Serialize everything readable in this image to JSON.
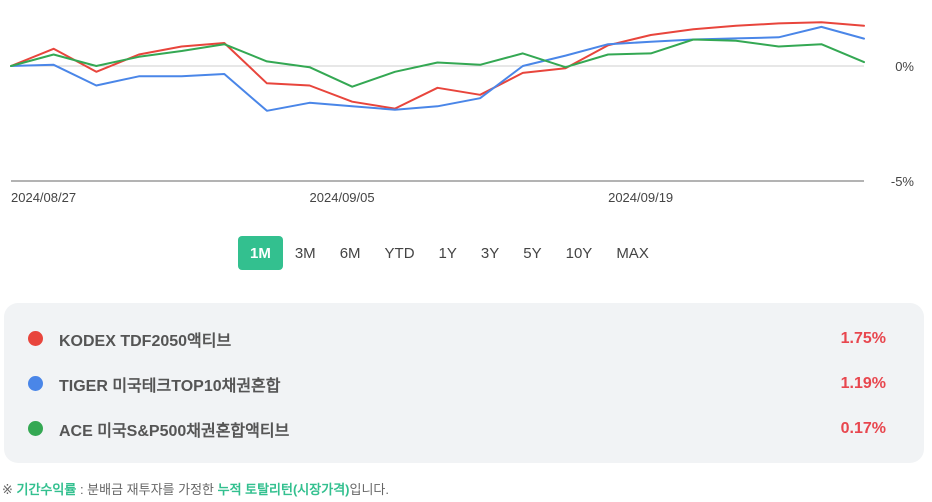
{
  "chart_data": {
    "type": "line",
    "x": [
      "2024/08/27",
      "2024/08/28",
      "2024/08/29",
      "2024/08/30",
      "2024/09/02",
      "2024/09/03",
      "2024/09/04",
      "2024/09/05",
      "2024/09/06",
      "2024/09/09",
      "2024/09/10",
      "2024/09/11",
      "2024/09/12",
      "2024/09/13",
      "2024/09/19",
      "2024/09/20",
      "2024/09/23",
      "2024/09/24",
      "2024/09/25",
      "2024/09/26",
      "2024/09/27"
    ],
    "xtick_labels": [
      "2024/08/27",
      "2024/09/05",
      "2024/09/19"
    ],
    "ytick_labels": [
      "0%",
      "-5%"
    ],
    "yticks": [
      0,
      -5
    ],
    "ylim": [
      -5,
      2
    ],
    "grid": true,
    "series": [
      {
        "name": "KODEX TDF2050액티브",
        "color": "#e8453c",
        "values": [
          0.0,
          0.75,
          -0.25,
          0.5,
          0.85,
          1.0,
          -0.75,
          -0.85,
          -1.55,
          -1.85,
          -0.95,
          -1.25,
          -0.3,
          -0.1,
          0.9,
          1.35,
          1.6,
          1.75,
          1.85,
          1.9,
          1.75
        ]
      },
      {
        "name": "TIGER 미국테크TOP10채권혼합",
        "color": "#4a86e8",
        "values": [
          0.0,
          0.05,
          -0.85,
          -0.45,
          -0.45,
          -0.35,
          -1.95,
          -1.6,
          -1.75,
          -1.9,
          -1.75,
          -1.4,
          0.0,
          0.45,
          0.95,
          1.05,
          1.15,
          1.2,
          1.25,
          1.7,
          1.19
        ]
      },
      {
        "name": "ACE 미국S&P500채권혼합액티브",
        "color": "#34a853",
        "values": [
          0.0,
          0.5,
          0.0,
          0.4,
          0.65,
          0.95,
          0.2,
          -0.05,
          -0.9,
          -0.25,
          0.15,
          0.05,
          0.55,
          -0.05,
          0.5,
          0.55,
          1.15,
          1.1,
          0.85,
          0.95,
          0.17
        ]
      }
    ]
  },
  "ranges": {
    "selected": "1M",
    "items": [
      "1M",
      "3M",
      "6M",
      "YTD",
      "1Y",
      "3Y",
      "5Y",
      "10Y",
      "MAX"
    ]
  },
  "legend": [
    {
      "name": "KODEX TDF2050액티브",
      "value": "1.75%",
      "color": "#e8453c"
    },
    {
      "name": "TIGER 미국테크TOP10채권혼합",
      "value": "1.19%",
      "color": "#4a86e8"
    },
    {
      "name": "ACE 미국S&P500채권혼합액티브",
      "value": "0.17%",
      "color": "#34a853"
    }
  ],
  "footnote": {
    "prefix": "※ ",
    "term": "기간수익률",
    "middle": " : 분배금 재투자를 가정한 ",
    "emphasis": "누적 토탈리턴(시장가격)",
    "suffix": "입니다."
  },
  "colors": {
    "accent": "#33c08f",
    "positive_value": "#e8464e",
    "panel_bg": "#f1f3f5"
  }
}
